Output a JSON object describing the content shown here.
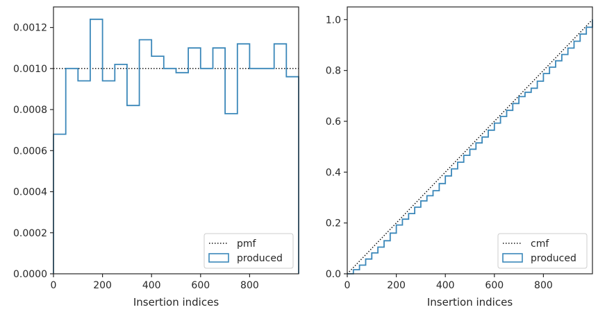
{
  "colors": {
    "produced": "#3a87b9",
    "reference": "#111111",
    "frame": "#262626",
    "legend_border": "#cccccc"
  },
  "chart_data": [
    {
      "type": "step",
      "title": "",
      "xlabel": "Insertion indices",
      "ylabel": "",
      "xlim": [
        0,
        1000
      ],
      "ylim": [
        0,
        0.0013
      ],
      "xticks": [
        0,
        200,
        400,
        600,
        800
      ],
      "xtick_labels": [
        "0",
        "200",
        "400",
        "600",
        "800"
      ],
      "yticks": [
        0,
        0.0002,
        0.0004,
        0.0006,
        0.0008,
        0.001,
        0.0012
      ],
      "ytick_labels": [
        "0.0000",
        "0.0002",
        "0.0004",
        "0.0006",
        "0.0008",
        "0.0010",
        "0.0012"
      ],
      "grid": false,
      "legend_position": "lower-right",
      "bin_width": 50,
      "bin_edges": [
        0,
        50,
        100,
        150,
        200,
        250,
        300,
        350,
        400,
        450,
        500,
        550,
        600,
        650,
        700,
        750,
        800,
        850,
        900,
        950,
        1000
      ],
      "series": [
        {
          "name": "pmf",
          "style": "dotted",
          "x": [
            0,
            1000
          ],
          "y": [
            0.001,
            0.001
          ]
        },
        {
          "name": "produced",
          "style": "step",
          "values": [
            0.00068,
            0.001,
            0.00094,
            0.00124,
            0.00094,
            0.00102,
            0.00082,
            0.00114,
            0.00106,
            0.001,
            0.00098,
            0.0011,
            0.001,
            0.0011,
            0.00078,
            0.00112,
            0.001,
            0.001,
            0.00112,
            0.00096
          ]
        }
      ]
    },
    {
      "type": "step",
      "title": "",
      "xlabel": "Insertion indices",
      "ylabel": "",
      "xlim": [
        0,
        1000
      ],
      "ylim": [
        0,
        1.05
      ],
      "xticks": [
        0,
        200,
        400,
        600,
        800
      ],
      "xtick_labels": [
        "0",
        "200",
        "400",
        "600",
        "800"
      ],
      "yticks": [
        0,
        0.2,
        0.4,
        0.6,
        0.8,
        1.0
      ],
      "ytick_labels": [
        "0.0",
        "0.2",
        "0.4",
        "0.6",
        "0.8",
        "1.0"
      ],
      "grid": false,
      "legend_position": "lower-right",
      "series": [
        {
          "name": "cmf",
          "style": "dotted",
          "x": [
            0,
            1000
          ],
          "y": [
            0,
            1
          ]
        },
        {
          "name": "produced",
          "style": "step",
          "x": [
            0,
            25,
            50,
            75,
            100,
            125,
            150,
            175,
            200,
            225,
            250,
            275,
            300,
            325,
            350,
            375,
            400,
            425,
            450,
            475,
            500,
            525,
            550,
            575,
            600,
            625,
            650,
            675,
            700,
            725,
            750,
            775,
            800,
            825,
            850,
            875,
            900,
            925,
            950,
            975,
            1000
          ],
          "y": [
            0,
            0.016,
            0.034,
            0.058,
            0.082,
            0.105,
            0.13,
            0.16,
            0.192,
            0.215,
            0.237,
            0.262,
            0.287,
            0.307,
            0.327,
            0.355,
            0.385,
            0.413,
            0.439,
            0.466,
            0.49,
            0.515,
            0.538,
            0.565,
            0.593,
            0.619,
            0.643,
            0.67,
            0.697,
            0.714,
            0.73,
            0.758,
            0.788,
            0.813,
            0.838,
            0.863,
            0.888,
            0.915,
            0.943,
            0.97,
            1.0
          ]
        }
      ]
    }
  ]
}
